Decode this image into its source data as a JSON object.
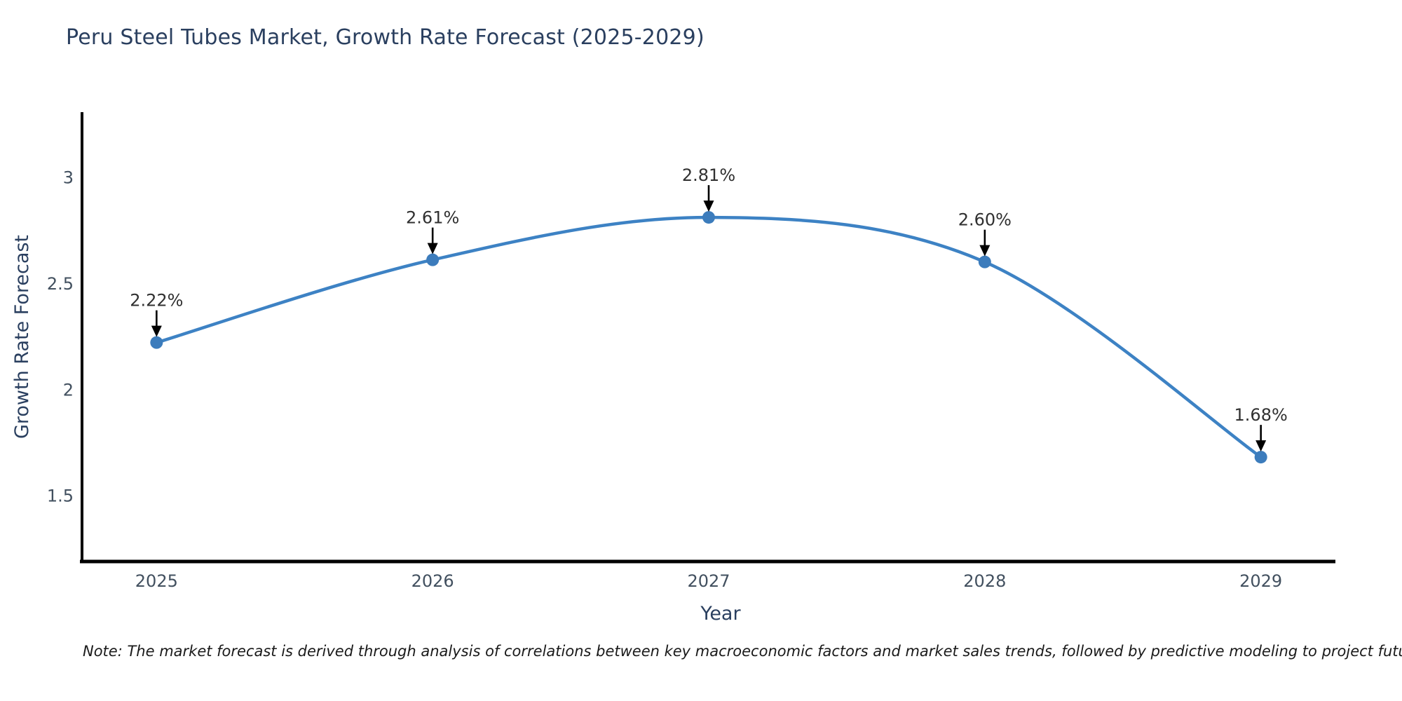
{
  "title": "Peru Steel Tubes Market, Growth Rate Forecast (2025-2029)",
  "note": "Note: The market forecast is derived through analysis of correlations between key macroeconomic factors and market sales trends, followed by predictive modeling to project future sales",
  "chart_data": {
    "type": "line",
    "title": "Peru Steel Tubes Market, Growth Rate Forecast (2025-2029)",
    "xlabel": "Year",
    "ylabel": "Growth Rate Forecast",
    "x": [
      2025,
      2026,
      2027,
      2028,
      2029
    ],
    "values": [
      2.22,
      2.61,
      2.81,
      2.6,
      1.68
    ],
    "point_labels": [
      "2.22%",
      "2.61%",
      "2.81%",
      "2.60%",
      "1.68%"
    ],
    "xtick_labels": [
      "2025",
      "2026",
      "2027",
      "2028",
      "2029"
    ],
    "yticks": [
      1.5,
      2,
      2.5,
      3
    ],
    "ytick_labels": [
      "1.5",
      "2",
      "2.5",
      "3"
    ],
    "xlim": [
      2024.73,
      2029.27
    ],
    "ylim": [
      1.188,
      3.306
    ],
    "line_shape": "spline",
    "grid": false,
    "legend": false,
    "annotation_arrows": true,
    "colors": {
      "line": "#3d82c4",
      "marker": "#3c7cbc",
      "axis_line": "#000000",
      "title_text": "#2a3f5f",
      "axis_title_text": "#2a3f5f",
      "tick_text": "#42505f",
      "point_label_text": "#303030",
      "arrow": "#000000",
      "background": "#ffffff"
    }
  }
}
